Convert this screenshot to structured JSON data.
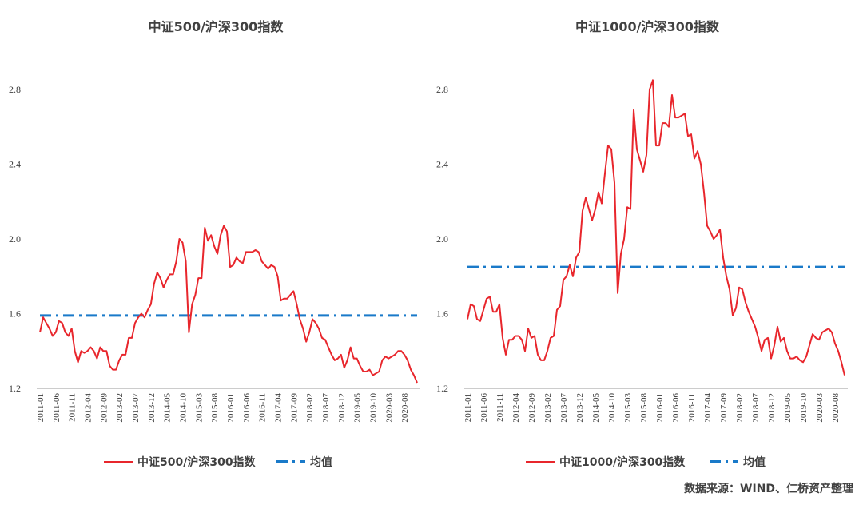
{
  "colors": {
    "series": "#e8262c",
    "mean": "#1a7ac9",
    "axis": "#404040"
  },
  "source": "数据来源：WIND、仁桥资产整理",
  "chart_data": [
    {
      "type": "line",
      "title": "中证500/沪深300指数",
      "ylim": [
        1.2,
        2.8
      ],
      "yticks": [
        "1.2",
        "1.6",
        "2.0",
        "2.4",
        "2.8"
      ],
      "xticks": [
        "2011-01",
        "2011-06",
        "2011-11",
        "2012-04",
        "2012-09",
        "2013-02",
        "2013-07",
        "2013-12",
        "2014-05",
        "2014-10",
        "2015-03",
        "2015-08",
        "2016-01",
        "2016-06",
        "2016-11",
        "2017-04",
        "2017-09",
        "2018-02",
        "2018-07",
        "2018-12",
        "2019-05",
        "2019-10",
        "2020-03",
        "2020-08"
      ],
      "grid": false,
      "legend_position": "bottom",
      "series": [
        {
          "name": "中证500/沪深300指数",
          "values": [
            1.5,
            1.58,
            1.55,
            1.52,
            1.48,
            1.5,
            1.56,
            1.55,
            1.5,
            1.48,
            1.52,
            1.4,
            1.34,
            1.4,
            1.39,
            1.4,
            1.42,
            1.4,
            1.36,
            1.42,
            1.4,
            1.4,
            1.32,
            1.3,
            1.3,
            1.35,
            1.38,
            1.38,
            1.47,
            1.47,
            1.55,
            1.58,
            1.6,
            1.58,
            1.62,
            1.65,
            1.76,
            1.82,
            1.79,
            1.74,
            1.78,
            1.81,
            1.81,
            1.88,
            2.0,
            1.98,
            1.88,
            1.5,
            1.65,
            1.7,
            1.79,
            1.79,
            2.06,
            1.99,
            2.02,
            1.96,
            1.92,
            2.02,
            2.07,
            2.04,
            1.85,
            1.86,
            1.9,
            1.88,
            1.87,
            1.93,
            1.93,
            1.93,
            1.94,
            1.93,
            1.88,
            1.86,
            1.84,
            1.86,
            1.85,
            1.8,
            1.67,
            1.68,
            1.68,
            1.7,
            1.72,
            1.65,
            1.57,
            1.52,
            1.45,
            1.5,
            1.57,
            1.55,
            1.52,
            1.47,
            1.46,
            1.42,
            1.38,
            1.35,
            1.36,
            1.38,
            1.31,
            1.35,
            1.42,
            1.36,
            1.36,
            1.32,
            1.29,
            1.29,
            1.3,
            1.27,
            1.28,
            1.29,
            1.35,
            1.37,
            1.36,
            1.37,
            1.38,
            1.4,
            1.4,
            1.38,
            1.35,
            1.3,
            1.27,
            1.23
          ]
        },
        {
          "name": "均值",
          "values": [
            1.59
          ]
        }
      ]
    },
    {
      "type": "line",
      "title": "中证1000/沪深300指数",
      "ylim": [
        1.2,
        2.8
      ],
      "yticks": [
        "1.2",
        "1.6",
        "2.0",
        "2.4",
        "2.8"
      ],
      "xticks": [
        "2011-01",
        "2011-06",
        "2011-11",
        "2012-04",
        "2012-09",
        "2013-02",
        "2013-07",
        "2013-12",
        "2014-05",
        "2014-10",
        "2015-03",
        "2015-08",
        "2016-01",
        "2016-06",
        "2016-11",
        "2017-04",
        "2017-09",
        "2018-02",
        "2018-07",
        "2018-12",
        "2019-05",
        "2019-10",
        "2020-03",
        "2020-08"
      ],
      "grid": false,
      "legend_position": "bottom",
      "series": [
        {
          "name": "中证1000/沪深300指数",
          "values": [
            1.57,
            1.65,
            1.64,
            1.57,
            1.56,
            1.62,
            1.68,
            1.69,
            1.61,
            1.61,
            1.65,
            1.47,
            1.38,
            1.46,
            1.46,
            1.48,
            1.48,
            1.46,
            1.4,
            1.52,
            1.47,
            1.48,
            1.38,
            1.35,
            1.35,
            1.4,
            1.47,
            1.48,
            1.62,
            1.64,
            1.78,
            1.8,
            1.86,
            1.8,
            1.9,
            1.93,
            2.15,
            2.22,
            2.16,
            2.1,
            2.16,
            2.25,
            2.19,
            2.35,
            2.5,
            2.48,
            2.3,
            1.71,
            1.92,
            2.0,
            2.17,
            2.16,
            2.69,
            2.48,
            2.42,
            2.36,
            2.45,
            2.8,
            2.85,
            2.5,
            2.5,
            2.62,
            2.62,
            2.6,
            2.77,
            2.65,
            2.65,
            2.66,
            2.67,
            2.55,
            2.56,
            2.43,
            2.47,
            2.4,
            2.25,
            2.07,
            2.04,
            2.0,
            2.02,
            2.05,
            1.9,
            1.8,
            1.73,
            1.59,
            1.63,
            1.74,
            1.73,
            1.66,
            1.61,
            1.57,
            1.53,
            1.47,
            1.4,
            1.46,
            1.47,
            1.36,
            1.43,
            1.53,
            1.45,
            1.47,
            1.4,
            1.36,
            1.36,
            1.37,
            1.35,
            1.34,
            1.37,
            1.43,
            1.49,
            1.47,
            1.46,
            1.5,
            1.51,
            1.52,
            1.5,
            1.44,
            1.4,
            1.34,
            1.27
          ]
        },
        {
          "name": "均值",
          "values": [
            1.85
          ]
        }
      ]
    }
  ]
}
